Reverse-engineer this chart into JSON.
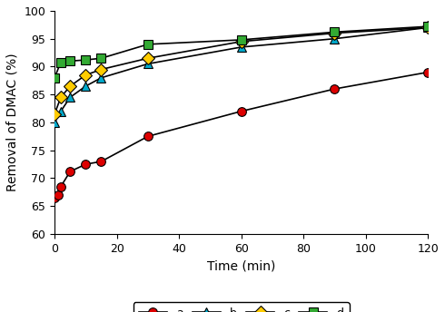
{
  "series": {
    "a": {
      "x": [
        0,
        1,
        2,
        5,
        10,
        15,
        30,
        60,
        90,
        120
      ],
      "y": [
        66.5,
        67.0,
        68.5,
        71.2,
        72.5,
        73.0,
        77.5,
        82.0,
        86.0,
        89.0
      ],
      "color": "#dd0000",
      "marker": "o",
      "label": "a",
      "markersize": 7
    },
    "b": {
      "x": [
        0,
        2,
        5,
        10,
        15,
        30,
        60,
        90,
        120
      ],
      "y": [
        80.0,
        82.0,
        84.5,
        86.5,
        88.0,
        90.5,
        93.5,
        95.0,
        97.0
      ],
      "color": "#00aacc",
      "marker": "^",
      "label": "b",
      "markersize": 7
    },
    "c": {
      "x": [
        0,
        2,
        5,
        10,
        15,
        30,
        60,
        90,
        120
      ],
      "y": [
        81.5,
        84.5,
        86.5,
        88.5,
        89.5,
        91.5,
        94.5,
        96.0,
        97.0
      ],
      "color": "#ffcc00",
      "marker": "D",
      "label": "c",
      "markersize": 7
    },
    "d": {
      "x": [
        0,
        2,
        5,
        10,
        15,
        30,
        60,
        90,
        120
      ],
      "y": [
        88.0,
        90.8,
        91.0,
        91.2,
        91.5,
        94.0,
        94.8,
        96.2,
        97.2
      ],
      "color": "#33aa33",
      "marker": "s",
      "label": "d",
      "markersize": 7
    }
  },
  "xlabel": "Time (min)",
  "ylabel": "Removal of DMAC (%)",
  "xlim": [
    0,
    120
  ],
  "ylim": [
    60,
    100
  ],
  "yticks": [
    60,
    65,
    70,
    75,
    80,
    85,
    90,
    95,
    100
  ],
  "xticks": [
    0,
    20,
    40,
    60,
    80,
    100,
    120
  ],
  "axis_fontsize": 10,
  "tick_fontsize": 9,
  "legend_fontsize": 9,
  "linewidth": 1.2,
  "line_color": "black",
  "background_color": "#ffffff"
}
